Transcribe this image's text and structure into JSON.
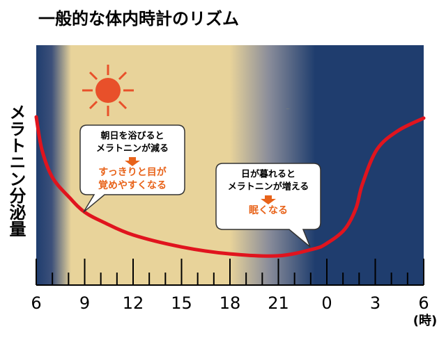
{
  "chart_data": {
    "type": "line",
    "title": "一般的な体内時計のリズム",
    "y_label": "メラトニン分泌量",
    "x_unit": "(時)",
    "xlim": [
      6,
      30
    ],
    "xticks": [
      6,
      9,
      12,
      15,
      18,
      21,
      {
        "value": 24,
        "label": "0"
      },
      {
        "value": 27,
        "label": "3"
      },
      {
        "value": 30,
        "label": "6"
      }
    ],
    "minor_xticks": [
      7,
      8,
      10,
      11,
      13,
      14,
      16,
      17,
      19,
      20,
      22,
      23,
      25,
      26,
      28,
      29
    ],
    "ylim": [
      0,
      100
    ],
    "series": [
      {
        "color": "#e0141e",
        "x": [
          6,
          6.35,
          7.0,
          8.1,
          9,
          10.2,
          12,
          15,
          18,
          21,
          23.2,
          24,
          25.1,
          25.8,
          26.2,
          27.1,
          28.4,
          30
        ],
        "values": [
          70.1,
          56.5,
          44.9,
          36.2,
          30.4,
          26.1,
          20.9,
          15.9,
          13.0,
          12.2,
          15.1,
          17.4,
          23.2,
          31.9,
          42.0,
          56.5,
          64.3,
          69.6
        ]
      }
    ],
    "annotations": [
      {
        "lines": [
          "朝日を浴びると",
          "メラトニンが減る"
        ],
        "result": [
          "すっきりと目が",
          "覚めやすくなる"
        ]
      },
      {
        "lines": [
          "日が暮れると",
          "メラトニンが増える"
        ],
        "result": [
          "眠くなる"
        ]
      }
    ]
  }
}
